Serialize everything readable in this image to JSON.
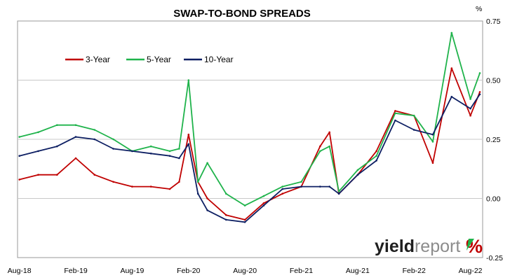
{
  "chart_data": {
    "type": "line",
    "title": "SWAP-TO-BOND SPREADS",
    "y_unit": "%",
    "ylim": [
      -0.25,
      0.75
    ],
    "y_ticks": [
      "0.75",
      "0.50",
      "0.25",
      "0.00",
      "-0.25"
    ],
    "x_ticks": [
      "Aug-18",
      "Feb-19",
      "Aug-19",
      "Feb-20",
      "Aug-20",
      "Feb-21",
      "Aug-21",
      "Feb-22",
      "Aug-22"
    ],
    "x": [
      "Aug-18",
      "Oct-18",
      "Dec-18",
      "Feb-19",
      "Apr-19",
      "Jun-19",
      "Aug-19",
      "Oct-19",
      "Dec-19",
      "Jan-20",
      "Feb-20",
      "Mar-20",
      "Apr-20",
      "Jun-20",
      "Aug-20",
      "Oct-20",
      "Dec-20",
      "Feb-21",
      "Apr-21",
      "May-21",
      "Jun-21",
      "Aug-21",
      "Oct-21",
      "Dec-21",
      "Feb-22",
      "Apr-22",
      "Jun-22",
      "Aug-22",
      "Sep-22"
    ],
    "grid": "horizontal",
    "legend_position": "top-left",
    "series": [
      {
        "name": "3-Year",
        "color": "#c00000",
        "values": [
          0.08,
          0.1,
          0.1,
          0.17,
          0.1,
          0.07,
          0.05,
          0.05,
          0.04,
          0.07,
          0.27,
          0.07,
          0.0,
          -0.07,
          -0.09,
          -0.02,
          0.02,
          0.05,
          0.22,
          0.28,
          0.02,
          0.1,
          0.2,
          0.37,
          0.35,
          0.15,
          0.55,
          0.35,
          0.45
        ]
      },
      {
        "name": "5-Year",
        "color": "#1fb34b",
        "values": [
          0.26,
          0.28,
          0.31,
          0.31,
          0.29,
          0.25,
          0.2,
          0.22,
          0.2,
          0.21,
          0.5,
          0.07,
          0.15,
          0.02,
          -0.03,
          0.01,
          0.05,
          0.07,
          0.2,
          0.22,
          0.03,
          0.12,
          0.18,
          0.36,
          0.35,
          0.24,
          0.7,
          0.42,
          0.53
        ]
      },
      {
        "name": "10-Year",
        "color": "#0d1f63",
        "values": [
          0.18,
          0.2,
          0.22,
          0.26,
          0.25,
          0.21,
          0.2,
          0.19,
          0.18,
          0.17,
          0.23,
          0.02,
          -0.05,
          -0.09,
          -0.1,
          -0.03,
          0.04,
          0.05,
          0.05,
          0.05,
          0.02,
          0.1,
          0.16,
          0.33,
          0.29,
          0.27,
          0.43,
          0.38,
          0.44
        ]
      }
    ]
  },
  "logo": {
    "word_bold": "yield",
    "word_light": "report",
    "mark": "%"
  }
}
